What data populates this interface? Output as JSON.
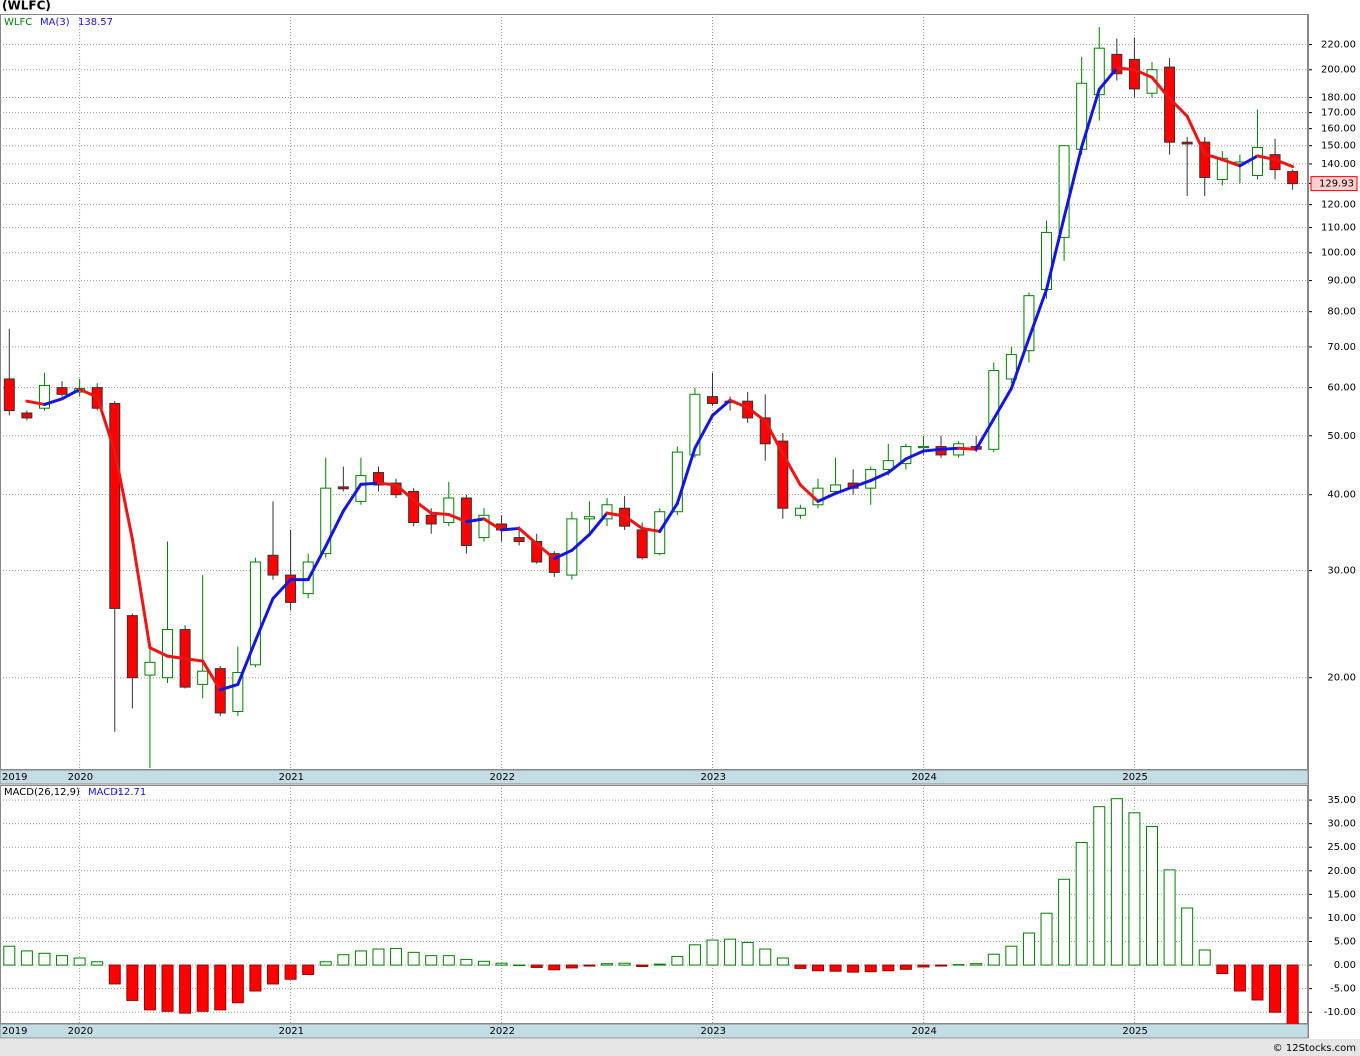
{
  "chart_data": [
    {
      "type": "candlestick",
      "title": "(WLFC)",
      "symbol": "WLFC",
      "categories": [
        "2019",
        null,
        null,
        null,
        "2020",
        null,
        null,
        null,
        null,
        null,
        null,
        null,
        null,
        null,
        null,
        null,
        "2021",
        null,
        null,
        null,
        null,
        null,
        null,
        null,
        null,
        null,
        null,
        null,
        "2022",
        null,
        null,
        null,
        null,
        null,
        null,
        null,
        null,
        null,
        null,
        null,
        "2023",
        null,
        null,
        null,
        null,
        null,
        null,
        null,
        null,
        null,
        null,
        null,
        "2024",
        null,
        null,
        null,
        null,
        null,
        null,
        null,
        null,
        null,
        null,
        null,
        "2025",
        null,
        null,
        null,
        null,
        null,
        null,
        null,
        null,
        null
      ],
      "open": [
        62,
        54.5,
        55.5,
        60,
        59,
        60,
        56.5,
        25.3,
        20.2,
        20,
        24,
        19.5,
        20.7,
        17.6,
        21,
        31.8,
        29.5,
        27.5,
        32,
        41.2,
        39,
        43.5,
        41.8,
        40.5,
        37,
        36,
        39.5,
        34,
        35.8,
        34,
        33.5,
        32,
        29.5,
        36.5,
        36.5,
        38,
        35,
        32,
        37.5,
        46.5,
        58,
        57,
        57,
        53.5,
        49,
        37,
        38.5,
        40.5,
        41.8,
        41,
        44,
        45,
        47.8,
        48,
        46.5,
        48,
        47.5,
        62,
        69,
        87,
        106,
        148,
        182,
        212,
        208,
        183,
        202,
        152,
        152,
        132,
        140,
        134,
        145,
        136
      ],
      "high": [
        75,
        55,
        63.5,
        61.5,
        62,
        61,
        57,
        25.5,
        22.5,
        33.5,
        24.4,
        29.5,
        20.9,
        22.5,
        31.5,
        39,
        35,
        32,
        46,
        44.5,
        46,
        44.5,
        42.5,
        41,
        38,
        42,
        40,
        38,
        37,
        35.5,
        34.5,
        32.3,
        37.5,
        39,
        39.5,
        39.8,
        36,
        38,
        48,
        60,
        63.5,
        58,
        59,
        58.5,
        50.5,
        38.5,
        42.5,
        46,
        44,
        44.5,
        48.5,
        48.5,
        50,
        50,
        49,
        50,
        66,
        70,
        86,
        113,
        150,
        210,
        235,
        225,
        226,
        206,
        209,
        155,
        155,
        147,
        145,
        172,
        154,
        137
      ],
      "low": [
        54,
        53,
        55,
        58,
        58,
        55,
        16.3,
        17.8,
        14.2,
        19.6,
        19.2,
        18.5,
        17.3,
        17.3,
        20.8,
        29,
        25.8,
        27,
        31.5,
        40.5,
        38.5,
        40.5,
        39.5,
        35.5,
        34.5,
        35.5,
        32,
        33.5,
        33.5,
        33,
        30.8,
        29.3,
        29,
        34.5,
        35.5,
        35,
        31.3,
        31.8,
        37,
        46,
        56,
        55,
        52.5,
        45.5,
        36.5,
        36.5,
        38,
        40,
        40,
        38.5,
        43,
        44,
        46.5,
        46,
        46,
        47,
        47,
        61,
        66,
        84,
        97,
        145,
        165,
        192,
        180,
        180,
        145,
        124,
        124,
        129,
        130,
        132,
        132,
        127
      ],
      "close": [
        55,
        53.5,
        60.5,
        58.5,
        59.8,
        55.5,
        26,
        20,
        21.2,
        24,
        19.3,
        20.5,
        17.5,
        20.4,
        31,
        29.5,
        26.6,
        31,
        41,
        40.9,
        43,
        41.5,
        40,
        36,
        35.8,
        39.5,
        33,
        37,
        35,
        33.5,
        31,
        29.8,
        36.5,
        36.8,
        38.5,
        35.5,
        31.5,
        37.5,
        47,
        58.5,
        56.5,
        56.7,
        53.5,
        48.5,
        38,
        38,
        41,
        41.5,
        41,
        44,
        45.5,
        48,
        48,
        46.5,
        48.5,
        47.5,
        64,
        68,
        85,
        108,
        150,
        190,
        217,
        197,
        186,
        200,
        152,
        151,
        133,
        143,
        141,
        149,
        137,
        129.93
      ],
      "ma": {
        "name": "MA(3)",
        "up_color": "#1515e0",
        "down_color": "#ee1515",
        "values": [
          null,
          57,
          56.3,
          57.5,
          59.6,
          57.9,
          47.1,
          33.8,
          22.4,
          21.7,
          21.5,
          21.3,
          19.1,
          19.5,
          23.0,
          27.0,
          29.0,
          29.0,
          32.9,
          37.6,
          41.6,
          41.8,
          41.5,
          39.2,
          37.3,
          37.1,
          36.1,
          36.5,
          35.0,
          35.2,
          33.2,
          31.4,
          32.4,
          34.4,
          37.3,
          36.9,
          35.2,
          34.8,
          38.7,
          47.7,
          54.0,
          57.2,
          55.6,
          52.9,
          46.7,
          41.5,
          39.0,
          40.2,
          41.2,
          42.2,
          43.5,
          45.8,
          47.2,
          47.5,
          47.7,
          47.5,
          53.3,
          59.8,
          72.3,
          87.0,
          114.3,
          149.3,
          185.7,
          201.3,
          200.0,
          194.3,
          179.3,
          167.7,
          145.3,
          142.3,
          139.0,
          144.3,
          142.3,
          138.57
        ]
      },
      "up_color": "#008000",
      "down_color": "#ff0000",
      "log_scale": true,
      "grid": true,
      "ylim": [
        14.1,
        247
      ],
      "yticks": [
        {
          "value": 20,
          "label": "20.00"
        },
        {
          "value": 30,
          "label": "30.00"
        },
        {
          "value": 40,
          "label": "40.00"
        },
        {
          "value": 50,
          "label": "50.00"
        },
        {
          "value": 60,
          "label": "60.00"
        },
        {
          "value": 70,
          "label": "70.00"
        },
        {
          "value": 80,
          "label": "80.00"
        },
        {
          "value": 90,
          "label": "90.00"
        },
        {
          "value": 100,
          "label": "100.00"
        },
        {
          "value": 110,
          "label": "110.00"
        },
        {
          "value": 120,
          "label": "120.00"
        },
        {
          "value": 130,
          "label": "130.00"
        },
        {
          "value": 140,
          "label": "140.00"
        },
        {
          "value": 150,
          "label": "150.00"
        },
        {
          "value": 160,
          "label": "160.00"
        },
        {
          "value": 170,
          "label": "170.00"
        },
        {
          "value": 180,
          "label": "180.00"
        },
        {
          "value": 200,
          "label": "200.00"
        },
        {
          "value": 220,
          "label": "220.00"
        }
      ]
    },
    {
      "type": "bar",
      "name": "MACD(26,12,9)",
      "label": "MACD:",
      "categories": [
        "2019",
        null,
        null,
        null,
        "2020",
        null,
        null,
        null,
        null,
        null,
        null,
        null,
        null,
        null,
        null,
        null,
        "2021",
        null,
        null,
        null,
        null,
        null,
        null,
        null,
        null,
        null,
        null,
        null,
        "2022",
        null,
        null,
        null,
        null,
        null,
        null,
        null,
        null,
        null,
        null,
        null,
        "2023",
        null,
        null,
        null,
        null,
        null,
        null,
        null,
        null,
        null,
        null,
        null,
        "2024",
        null,
        null,
        null,
        null,
        null,
        null,
        null,
        null,
        null,
        null,
        null,
        "2025",
        null,
        null,
        null,
        null,
        null,
        null,
        null,
        null,
        null
      ],
      "values": [
        4,
        3,
        2.5,
        2,
        1.5,
        0.7,
        -4,
        -7.5,
        -9.5,
        -9.8,
        -10.2,
        -9.8,
        -9.5,
        -8,
        -5.5,
        -4,
        -3,
        -2,
        0.7,
        2.2,
        3,
        3.4,
        3.5,
        2.7,
        2,
        2,
        1.2,
        0.8,
        0.4,
        0,
        -0.5,
        -1,
        -0.6,
        -0.2,
        0.3,
        0.4,
        -0.3,
        0.2,
        1.8,
        4.3,
        5.3,
        5.5,
        4.8,
        3.4,
        1.5,
        -0.7,
        -1.2,
        -1.3,
        -1.5,
        -1.4,
        -1.2,
        -0.9,
        -0.4,
        -0.2,
        0.1,
        0.3,
        2.3,
        4,
        6.8,
        11,
        18.2,
        26,
        33.6,
        35.3,
        32.3,
        29.4,
        20.2,
        12.1,
        3.2,
        -1.8,
        -5.5,
        -7.4,
        -10,
        -12.71
      ],
      "up_color": "#008000",
      "down_color": "#ff0000",
      "grid": true,
      "ylim": [
        -12.5,
        38.2
      ],
      "yticks": [
        {
          "value": -10,
          "label": "-10.00"
        },
        {
          "value": -5,
          "label": "-5.00"
        },
        {
          "value": 0,
          "label": "0.00"
        },
        {
          "value": 5,
          "label": "5.00"
        },
        {
          "value": 10,
          "label": "10.00"
        },
        {
          "value": 15,
          "label": "15.00"
        },
        {
          "value": 20,
          "label": "20.00"
        },
        {
          "value": 25,
          "label": "25.00"
        },
        {
          "value": 30,
          "label": "30.00"
        },
        {
          "value": 35,
          "label": "35.00"
        }
      ]
    }
  ],
  "footer": "© 12Stocks.com"
}
